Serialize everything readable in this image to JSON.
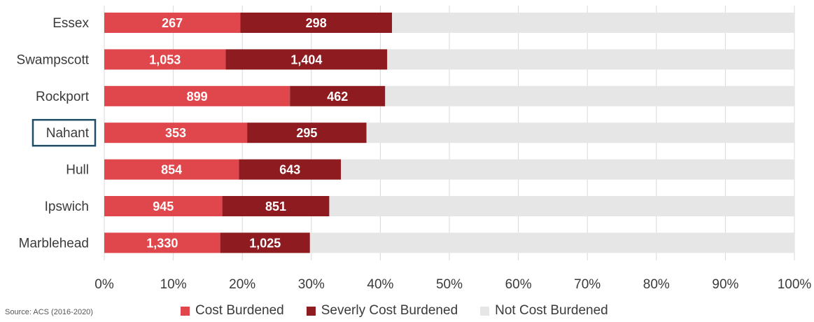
{
  "chart_data": {
    "type": "bar",
    "orientation": "horizontal",
    "stacked": true,
    "categories": [
      "Essex",
      "Swampscott",
      "Rockport",
      "Nahant",
      "Hull",
      "Ipswich",
      "Marblehead"
    ],
    "highlighted_category": "Nahant",
    "series": [
      {
        "name": "Cost Burdened",
        "color": "#e0474c",
        "percent": [
          19.7,
          17.6,
          26.9,
          20.7,
          19.5,
          17.1,
          16.8
        ],
        "labels": [
          "267",
          "1,053",
          "899",
          "353",
          "854",
          "945",
          "1,330"
        ]
      },
      {
        "name": "Severly Cost Burdened",
        "color": "#8e1b1f",
        "percent": [
          22.0,
          23.4,
          13.8,
          17.3,
          14.8,
          15.5,
          13.0
        ],
        "labels": [
          "298",
          "1,404",
          "462",
          "295",
          "643",
          "851",
          "1,025"
        ]
      },
      {
        "name": "Not Cost Burdened",
        "color": "#e6e6e6",
        "percent": [
          58.3,
          59.0,
          59.3,
          62.0,
          65.7,
          67.4,
          70.2
        ],
        "labels": [
          "",
          "",
          "",
          "",
          "",
          "",
          ""
        ]
      }
    ],
    "x_ticks": [
      "0%",
      "10%",
      "20%",
      "30%",
      "40%",
      "50%",
      "60%",
      "70%",
      "80%",
      "90%",
      "100%"
    ],
    "xlim": [
      0,
      100
    ],
    "grid": true,
    "legend_position": "bottom",
    "source": "Source: ACS (2016-2020)"
  }
}
